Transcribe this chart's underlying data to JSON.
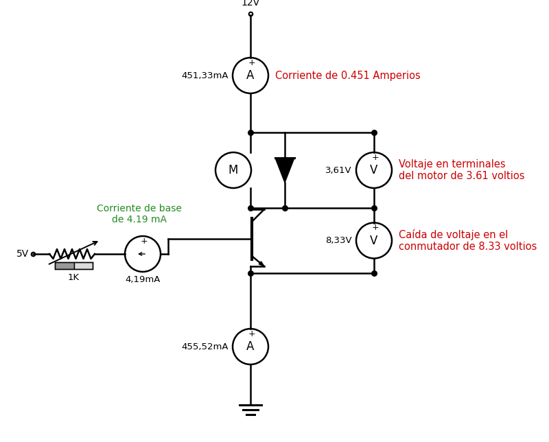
{
  "bg_color": "#ffffff",
  "line_color": "#000000",
  "red_color": "#cc0000",
  "green_color": "#228B22",
  "annotations": {
    "voltage_supply": "12V",
    "ammeter_top_val": "451,33mA",
    "ammeter_top_label": "Corriente de 0.451 Amperios",
    "motor_label": "M",
    "diode_voltage": "3,61V",
    "voltmeter_top_label": "Voltaje en terminales\ndel motor de 3.61 voltios",
    "voltmeter_bot_val": "8,33V",
    "voltmeter_bot_label": "Caída de voltaje en el\nconmutador de 8.33 voltios",
    "base_current_label": "Corriente de base\nde 4.19 mA",
    "ammeter_base_val": "4,19mA",
    "resistor_label": "1K",
    "voltage_input": "5V",
    "ammeter_bot_val": "455,52mA"
  }
}
